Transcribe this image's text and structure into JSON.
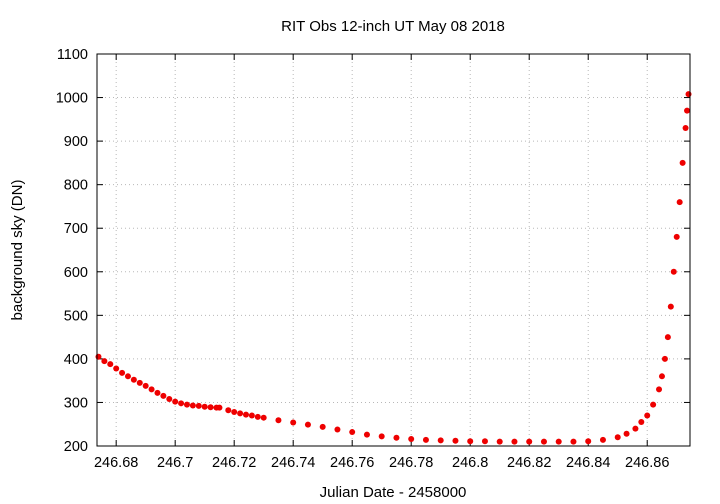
{
  "chart_data": {
    "type": "scatter",
    "title": "RIT Obs 12-inch UT May 08 2018",
    "xlabel": "Julian Date - 2458000",
    "ylabel": "background sky (DN)",
    "xlim": [
      246.6735,
      246.8745
    ],
    "ylim": [
      200,
      1100
    ],
    "grid": true,
    "marker_color": "#ee0000",
    "x_ticks": [
      246.68,
      246.7,
      246.72,
      246.74,
      246.76,
      246.78,
      246.8,
      246.82,
      246.84,
      246.86
    ],
    "x_tick_labels": [
      "246.68",
      "246.7",
      "246.72",
      "246.74",
      "246.76",
      "246.78",
      "246.8",
      "246.82",
      "246.84",
      "246.86"
    ],
    "y_ticks": [
      200,
      300,
      400,
      500,
      600,
      700,
      800,
      900,
      1000,
      1100
    ],
    "y_tick_labels": [
      "200",
      "300",
      "400",
      "500",
      "600",
      "700",
      "800",
      "900",
      "1000",
      "1100"
    ],
    "series": [
      {
        "x": [
          246.674,
          246.676,
          246.678,
          246.68,
          246.682,
          246.684,
          246.686,
          246.688,
          246.69,
          246.692,
          246.694,
          246.696,
          246.698,
          246.7,
          246.702,
          246.704,
          246.706,
          246.708,
          246.71,
          246.712,
          246.714,
          246.715,
          246.718,
          246.72,
          246.722,
          246.724,
          246.726,
          246.728,
          246.73,
          246.735,
          246.74,
          246.745,
          246.75,
          246.755,
          246.76,
          246.765,
          246.77,
          246.775,
          246.78,
          246.785,
          246.79,
          246.795,
          246.8,
          246.805,
          246.81,
          246.815,
          246.82,
          246.825,
          246.83,
          246.835,
          246.84,
          246.845,
          246.85,
          246.853,
          246.856,
          246.858,
          246.86,
          246.862,
          246.864,
          246.865,
          246.866,
          246.867,
          246.868,
          246.869,
          246.87,
          246.871,
          246.872,
          246.873,
          246.8735,
          246.874
        ],
        "y": [
          405,
          395,
          388,
          378,
          368,
          360,
          352,
          345,
          338,
          330,
          322,
          315,
          308,
          302,
          298,
          295,
          293,
          292,
          290,
          289,
          288,
          288,
          282,
          278,
          275,
          272,
          270,
          267,
          265,
          259,
          254,
          249,
          244,
          238,
          232,
          226,
          222,
          219,
          216,
          214,
          213,
          212,
          211,
          211,
          210,
          210,
          210,
          210,
          210,
          210,
          211,
          214,
          220,
          228,
          240,
          255,
          270,
          295,
          330,
          360,
          400,
          450,
          520,
          600,
          680,
          760,
          850,
          930,
          970,
          1008
        ]
      }
    ]
  }
}
